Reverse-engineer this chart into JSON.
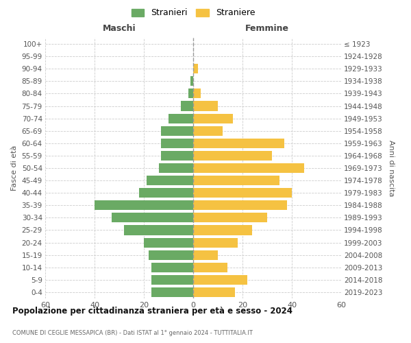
{
  "age_groups": [
    "0-4",
    "5-9",
    "10-14",
    "15-19",
    "20-24",
    "25-29",
    "30-34",
    "35-39",
    "40-44",
    "45-49",
    "50-54",
    "55-59",
    "60-64",
    "65-69",
    "70-74",
    "75-79",
    "80-84",
    "85-89",
    "90-94",
    "95-99",
    "100+"
  ],
  "birth_years": [
    "2019-2023",
    "2014-2018",
    "2009-2013",
    "2004-2008",
    "1999-2003",
    "1994-1998",
    "1989-1993",
    "1984-1988",
    "1979-1983",
    "1974-1978",
    "1969-1973",
    "1964-1968",
    "1959-1963",
    "1954-1958",
    "1949-1953",
    "1944-1948",
    "1939-1943",
    "1934-1938",
    "1929-1933",
    "1924-1928",
    "≤ 1923"
  ],
  "maschi": [
    17,
    17,
    17,
    18,
    20,
    28,
    33,
    40,
    22,
    19,
    14,
    13,
    13,
    13,
    10,
    5,
    2,
    1,
    0,
    0,
    0
  ],
  "femmine": [
    17,
    22,
    14,
    10,
    18,
    24,
    30,
    38,
    40,
    35,
    45,
    32,
    37,
    12,
    16,
    10,
    3,
    0,
    2,
    0,
    0
  ],
  "color_maschi": "#6aaa64",
  "color_femmine": "#f5c242",
  "title": "Popolazione per cittadinanza straniera per età e sesso - 2024",
  "subtitle": "COMUNE DI CEGLIE MESSAPICA (BR) - Dati ISTAT al 1° gennaio 2024 - TUTTITALIA.IT",
  "xlabel_left": "Maschi",
  "xlabel_right": "Femmine",
  "ylabel_left": "Fasce di età",
  "ylabel_right": "Anni di nascita",
  "legend_maschi": "Stranieri",
  "legend_femmine": "Straniere",
  "xlim": 60,
  "background_color": "#ffffff",
  "grid_color": "#cccccc"
}
